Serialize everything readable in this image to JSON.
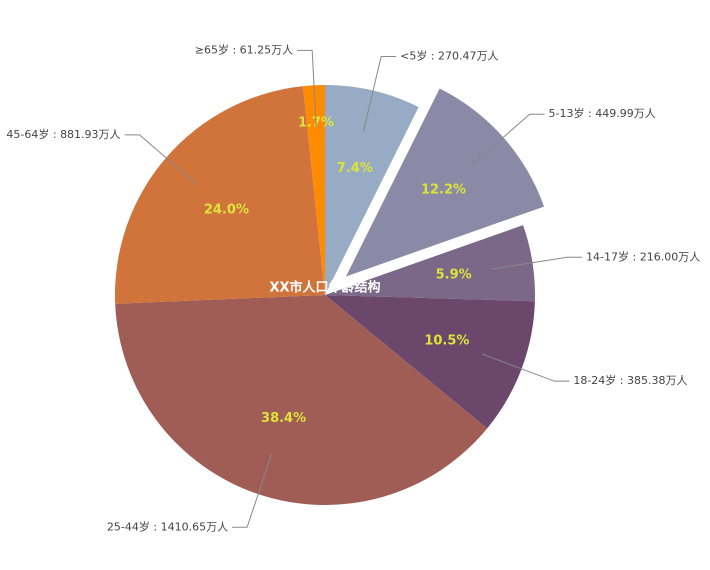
{
  "chart_data": {
    "type": "pie",
    "title": "XX市人口年龄结构",
    "categories": [
      "<5岁",
      "5-13岁",
      "14-17岁",
      "18-24岁",
      "25-44岁",
      "45-64岁",
      "≥65岁"
    ],
    "values": [
      270.47,
      449.99,
      216.0,
      385.38,
      1410.65,
      881.93,
      61.25
    ],
    "value_labels": [
      "270.47万人",
      "449.99万人",
      "216.00万人",
      "385.38万人",
      "1410.65万人",
      "881.93万人",
      "61.25万人"
    ],
    "percent_labels": [
      "7.4%",
      "12.2%",
      "5.9%",
      "10.5%",
      "38.4%",
      "24.0%",
      "1.7%"
    ],
    "label_separator": " : ",
    "colors": [
      "#98abc5",
      "#8a89a6",
      "#7b6888",
      "#6b486b",
      "#a05d56",
      "#d0743c",
      "#ff8c00"
    ],
    "exploded": "5-13岁"
  }
}
